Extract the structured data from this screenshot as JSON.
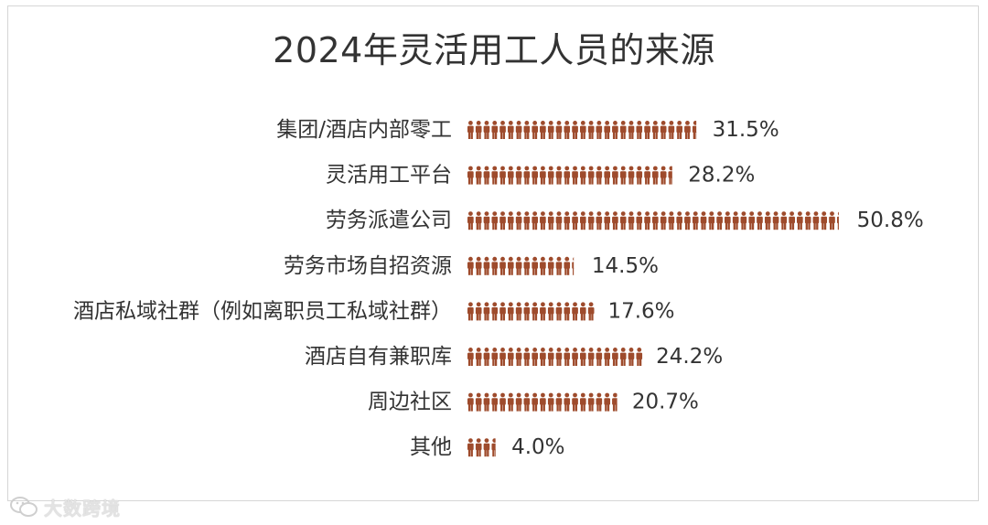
{
  "chart_data": {
    "type": "bar",
    "title": "2024年灵活用工人员的来源",
    "categories": [
      "集团/酒店内部零工",
      "灵活用工平台",
      "劳务派遣公司",
      "劳务市场自招资源",
      "酒店私域社群（例如离职员工私域社群）",
      "酒店自有兼职库",
      "周边社区",
      "其他"
    ],
    "values": [
      31.5,
      28.2,
      50.8,
      14.5,
      17.6,
      24.2,
      20.7,
      4.0
    ],
    "value_labels": [
      "31.5%",
      "28.2%",
      "50.8%",
      "14.5%",
      "17.6%",
      "24.2%",
      "20.7%",
      "4.0%"
    ],
    "unit": "%",
    "icon": "person-icon",
    "icon_value": 1.1,
    "colors": {
      "icon": "#9e4b2c",
      "text": "#333333",
      "title": "#333333"
    }
  },
  "watermark": {
    "text": "大数跨境",
    "icon": "wechat-logo-icon"
  }
}
